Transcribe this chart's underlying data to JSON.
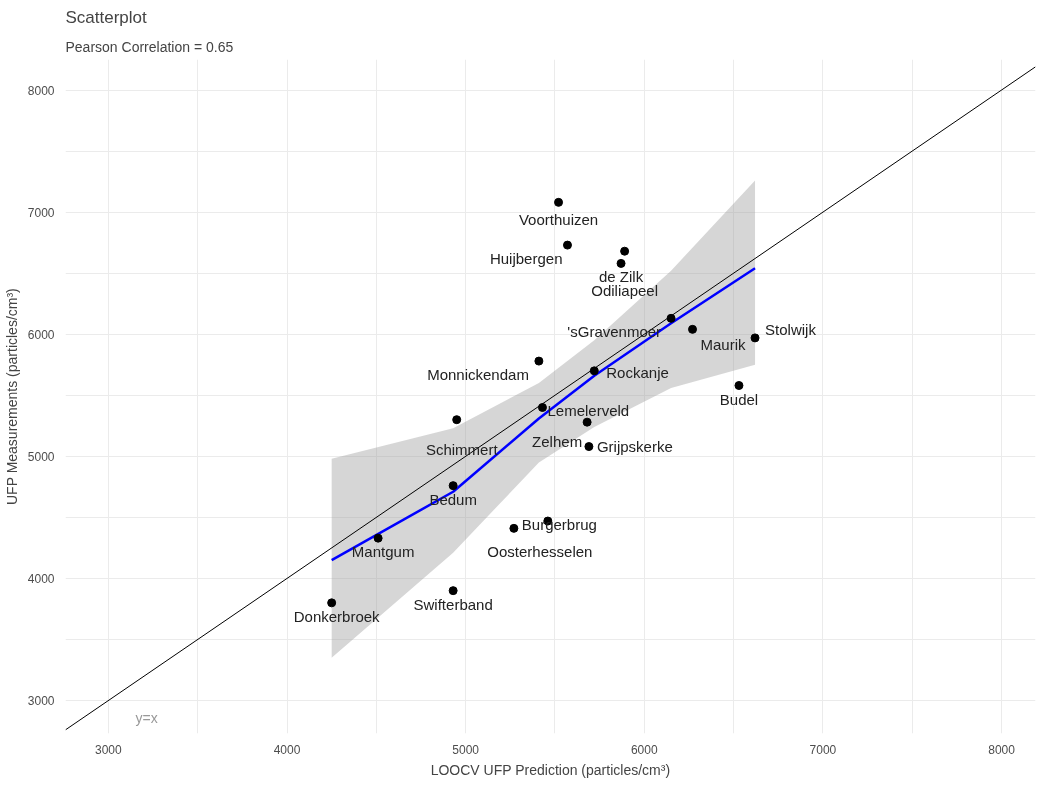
{
  "chart_data": {
    "type": "scatter",
    "title": "Scatterplot",
    "subtitle": "Pearson Correlation = 0.65",
    "xlabel": "LOOCV UFP Prediction (particles/cm³)",
    "ylabel": "UFP Measurements (particles/cm³)",
    "xlim": [
      2760,
      8190
    ],
    "ylim": [
      2730,
      8250
    ],
    "xticks": [
      3000,
      {
        "value": 3500,
        "label": null
      },
      4000,
      {
        "value": 4500,
        "label": null
      },
      5000,
      {
        "value": 5500,
        "label": null
      },
      6000,
      {
        "value": 6500,
        "label": null
      },
      7000,
      {
        "value": 7500,
        "label": null
      },
      8000
    ],
    "yticks": [
      3000,
      {
        "value": 3500,
        "label": null
      },
      4000,
      {
        "value": 4500,
        "label": null
      },
      5000,
      {
        "value": 5500,
        "label": null
      },
      6000,
      {
        "value": 6500,
        "label": null
      },
      7000,
      {
        "value": 7500,
        "label": null
      },
      8000
    ],
    "grid": true,
    "series": [
      {
        "color": "#000000",
        "marker": "circle",
        "x": [
          5520,
          5570,
          5870,
          5890,
          6150,
          6270,
          6620,
          6530,
          5410,
          5720,
          5430,
          4950,
          5680,
          5690,
          4930,
          5460,
          5270,
          4510,
          4930,
          4250
        ],
        "values": [
          7080,
          6730,
          6580,
          6680,
          6130,
          6040,
          5970,
          5580,
          5780,
          5700,
          5400,
          5300,
          5280,
          5080,
          4760,
          4470,
          4410,
          4330,
          3900,
          3800
        ]
      },
      {
        "type": "line",
        "color": "#0000ff",
        "x": [
          4250,
          4930,
          5410,
          5720,
          6150,
          6620
        ],
        "values": [
          4150,
          4710,
          5310,
          5660,
          6090,
          6540
        ],
        "lower": [
          3350,
          4210,
          4950,
          5240,
          5560,
          5750
        ],
        "upper": [
          4980,
          5230,
          5600,
          5950,
          6520,
          7260
        ]
      },
      {
        "type": "line",
        "color": "#000000",
        "x": [
          2760,
          8190
        ],
        "values": [
          2760,
          8190
        ]
      }
    ],
    "annotations": [
      {
        "text": "Voorthuizen",
        "x": 5520,
        "y": 7080
      },
      {
        "text": "Huijbergen",
        "x": 5570,
        "y": 6730
      },
      {
        "text": "de Zilk",
        "x": 5870,
        "y": 6580
      },
      {
        "text": "Odiliapeel",
        "x": 5890,
        "y": 6680
      },
      {
        "text": "'sGravenmoer",
        "x": 6150,
        "y": 6130
      },
      {
        "text": "Maurik",
        "x": 6270,
        "y": 6040
      },
      {
        "text": "Stolwijk",
        "x": 6620,
        "y": 5970
      },
      {
        "text": "Budel",
        "x": 6530,
        "y": 5580
      },
      {
        "text": "Monnickendam",
        "x": 5410,
        "y": 5780
      },
      {
        "text": "Rockanje",
        "x": 5720,
        "y": 5700
      },
      {
        "text": "Lemelerveld",
        "x": 5430,
        "y": 5400
      },
      {
        "text": "Schimmert",
        "x": 4950,
        "y": 5300
      },
      {
        "text": "Zelhem",
        "x": 5680,
        "y": 5280
      },
      {
        "text": "Grijpskerke",
        "x": 5690,
        "y": 5080
      },
      {
        "text": "Bedum",
        "x": 4930,
        "y": 4760
      },
      {
        "text": "Burgerbrug",
        "x": 5460,
        "y": 4470
      },
      {
        "text": "Oosterhesselen",
        "x": 5270,
        "y": 4410
      },
      {
        "text": "Mantgum",
        "x": 4510,
        "y": 4330
      },
      {
        "text": "Swifterband",
        "x": 4930,
        "y": 3900
      },
      {
        "text": "Donkerbroek",
        "x": 4250,
        "y": 3800
      },
      "y=x"
    ]
  }
}
